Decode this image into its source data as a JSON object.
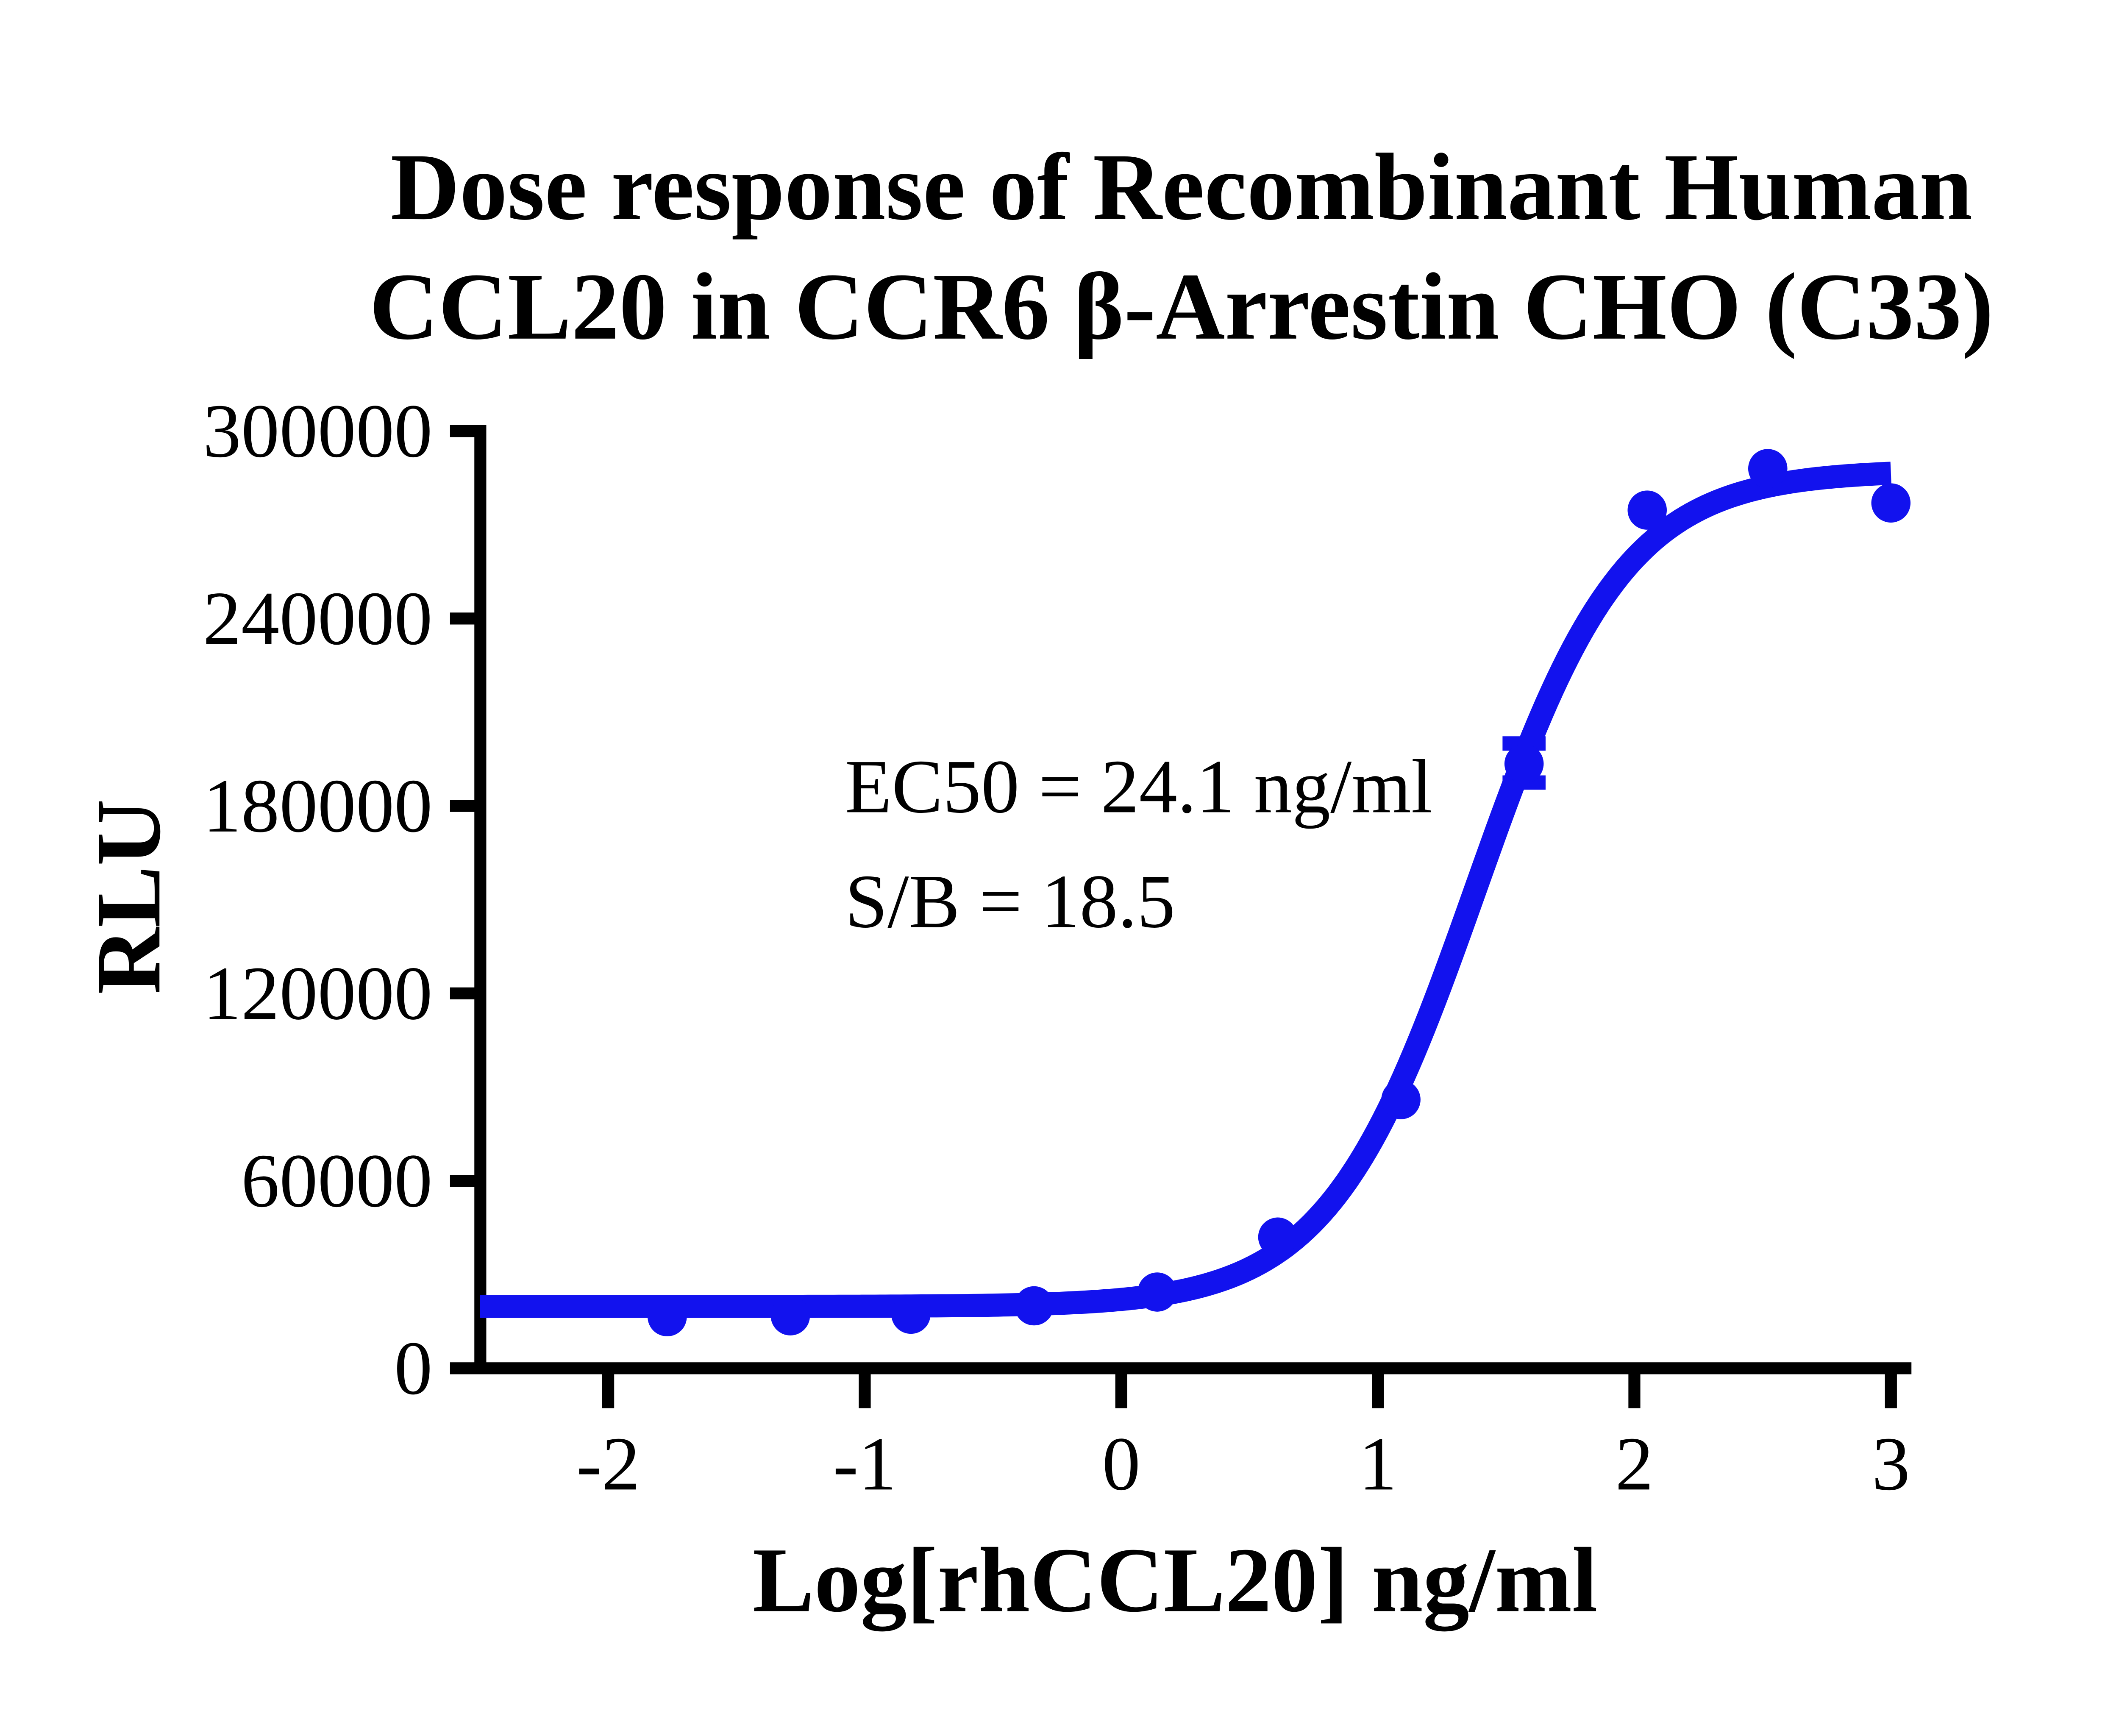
{
  "page": {
    "background": "#ffffff",
    "axis_color": "#000000",
    "series_color": "#1212ee"
  },
  "chart_data": {
    "type": "scatter",
    "title_line1": "Dose response of Recombinant Human",
    "title_line2": "CCL20 in CCR6 β-Arrestin CHO (C33)",
    "xlabel": "Log[rhCCL20] ng/ml",
    "ylabel": "RLU",
    "annotation_line1": "EC50 = 24.1 ng/ml",
    "annotation_line2": "S/B = 18.5",
    "ec50_ng_ml": 24.1,
    "signal_to_background": 18.5,
    "grid": false,
    "legend": "none",
    "xlim": [
      -2.5,
      3.08
    ],
    "ylim": [
      0,
      300000
    ],
    "x_ticks": [
      -2,
      -1,
      0,
      1,
      2,
      3
    ],
    "y_ticks": [
      0,
      60000,
      120000,
      180000,
      240000,
      300000
    ],
    "points": [
      {
        "x": -1.77,
        "y": 16500
      },
      {
        "x": -1.29,
        "y": 16800
      },
      {
        "x": -0.82,
        "y": 17300
      },
      {
        "x": -0.34,
        "y": 20000
      },
      {
        "x": 0.14,
        "y": 24400
      },
      {
        "x": 0.61,
        "y": 42000
      },
      {
        "x": 1.09,
        "y": 86000
      },
      {
        "x": 1.57,
        "y": 193500,
        "error_low": 187500,
        "error_high": 200000
      },
      {
        "x": 2.05,
        "y": 274700
      },
      {
        "x": 2.52,
        "y": 288000
      },
      {
        "x": 3.0,
        "y": 277000
      }
    ],
    "fit_curve": {
      "model": "4PL",
      "bottom": 19800,
      "top": 287500,
      "log_ec50": 1.382,
      "hill_slope": 1.5,
      "x_start": -2.5,
      "x_end": 3.0
    }
  }
}
